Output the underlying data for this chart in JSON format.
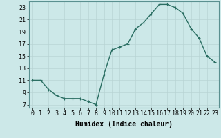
{
  "x": [
    0,
    1,
    2,
    3,
    4,
    5,
    6,
    7,
    8,
    9,
    10,
    11,
    12,
    13,
    14,
    15,
    16,
    17,
    18,
    19,
    20,
    21,
    22,
    23
  ],
  "y": [
    11,
    11,
    9.5,
    8.5,
    8,
    8,
    8,
    7.5,
    7,
    12,
    16,
    16.5,
    17,
    19.5,
    20.5,
    22,
    23.5,
    23.5,
    23,
    22,
    19.5,
    18,
    15,
    14
  ],
  "line_color": "#2a6e62",
  "marker": "+",
  "bg_color": "#cce8e8",
  "grid_color": "#b8d4d4",
  "xlabel": "Humidex (Indice chaleur)",
  "xlim": [
    -0.5,
    23.5
  ],
  "ylim": [
    6.5,
    24
  ],
  "yticks": [
    7,
    9,
    11,
    13,
    15,
    17,
    19,
    21,
    23
  ],
  "xticks": [
    0,
    1,
    2,
    3,
    4,
    5,
    6,
    7,
    8,
    9,
    10,
    11,
    12,
    13,
    14,
    15,
    16,
    17,
    18,
    19,
    20,
    21,
    22,
    23
  ],
  "xlabel_fontsize": 7,
  "tick_fontsize": 6,
  "linewidth": 1.0,
  "markersize": 3.5,
  "markeredgewidth": 0.8
}
